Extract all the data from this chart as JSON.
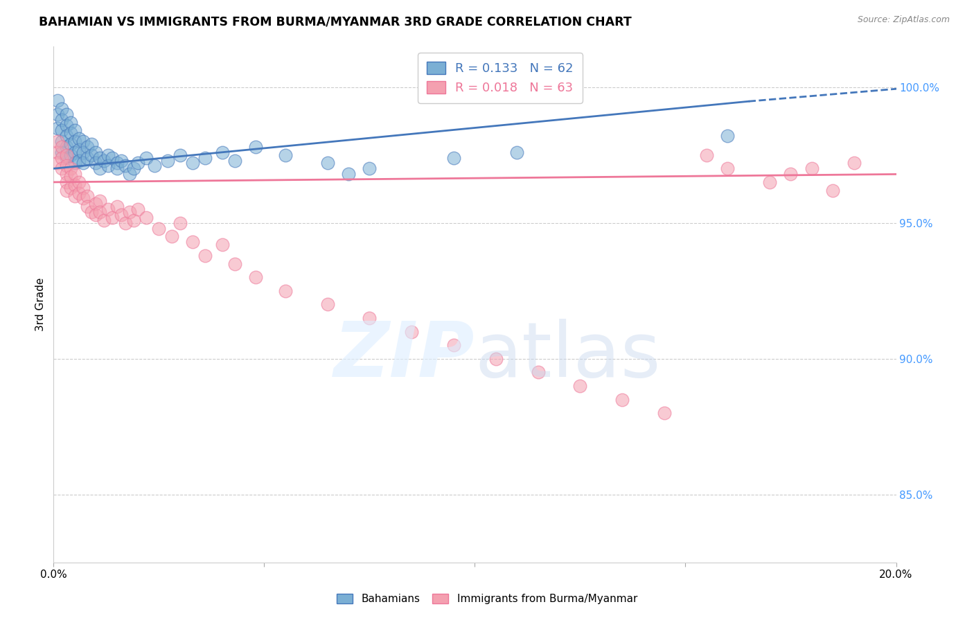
{
  "title": "BAHAMIAN VS IMMIGRANTS FROM BURMA/MYANMAR 3RD GRADE CORRELATION CHART",
  "source": "Source: ZipAtlas.com",
  "ylabel": "3rd Grade",
  "right_yticks": [
    85.0,
    90.0,
    95.0,
    100.0
  ],
  "right_ytick_labels": [
    "85.0%",
    "90.0%",
    "95.0%",
    "100.0%"
  ],
  "xlim": [
    0.0,
    0.2
  ],
  "ylim": [
    82.5,
    101.5
  ],
  "blue_color": "#7BAFD4",
  "pink_color": "#F4A0B0",
  "blue_line_color": "#4477BB",
  "pink_line_color": "#EE7799",
  "legend_R_blue": "0.133",
  "legend_N_blue": "62",
  "legend_R_pink": "0.018",
  "legend_N_pink": "63",
  "legend_label_blue": "Bahamians",
  "legend_label_pink": "Immigrants from Burma/Myanmar",
  "blue_scatter_x": [
    0.001,
    0.001,
    0.001,
    0.002,
    0.002,
    0.002,
    0.002,
    0.002,
    0.003,
    0.003,
    0.003,
    0.003,
    0.003,
    0.004,
    0.004,
    0.004,
    0.004,
    0.005,
    0.005,
    0.005,
    0.005,
    0.006,
    0.006,
    0.006,
    0.007,
    0.007,
    0.007,
    0.008,
    0.008,
    0.009,
    0.009,
    0.01,
    0.01,
    0.011,
    0.011,
    0.012,
    0.013,
    0.013,
    0.014,
    0.015,
    0.015,
    0.016,
    0.017,
    0.018,
    0.019,
    0.02,
    0.022,
    0.024,
    0.027,
    0.03,
    0.033,
    0.036,
    0.04,
    0.043,
    0.048,
    0.055,
    0.065,
    0.07,
    0.075,
    0.095,
    0.11,
    0.16
  ],
  "blue_scatter_y": [
    99.5,
    99.0,
    98.5,
    99.2,
    98.8,
    98.4,
    98.0,
    97.6,
    99.0,
    98.6,
    98.2,
    97.8,
    97.4,
    98.7,
    98.3,
    97.9,
    97.5,
    98.4,
    98.0,
    97.6,
    97.2,
    98.1,
    97.7,
    97.3,
    98.0,
    97.6,
    97.2,
    97.8,
    97.4,
    97.9,
    97.5,
    97.6,
    97.2,
    97.4,
    97.0,
    97.3,
    97.5,
    97.1,
    97.4,
    97.2,
    97.0,
    97.3,
    97.1,
    96.8,
    97.0,
    97.2,
    97.4,
    97.1,
    97.3,
    97.5,
    97.2,
    97.4,
    97.6,
    97.3,
    97.8,
    97.5,
    97.2,
    96.8,
    97.0,
    97.4,
    97.6,
    98.2
  ],
  "pink_scatter_x": [
    0.001,
    0.001,
    0.001,
    0.002,
    0.002,
    0.002,
    0.003,
    0.003,
    0.003,
    0.003,
    0.003,
    0.004,
    0.004,
    0.004,
    0.005,
    0.005,
    0.005,
    0.006,
    0.006,
    0.007,
    0.007,
    0.008,
    0.008,
    0.009,
    0.01,
    0.01,
    0.011,
    0.011,
    0.012,
    0.013,
    0.014,
    0.015,
    0.016,
    0.017,
    0.018,
    0.019,
    0.02,
    0.022,
    0.025,
    0.028,
    0.03,
    0.033,
    0.036,
    0.04,
    0.043,
    0.048,
    0.055,
    0.065,
    0.075,
    0.085,
    0.095,
    0.105,
    0.115,
    0.125,
    0.135,
    0.145,
    0.155,
    0.16,
    0.17,
    0.175,
    0.18,
    0.185,
    0.19
  ],
  "pink_scatter_y": [
    98.0,
    97.6,
    97.2,
    97.8,
    97.4,
    97.0,
    97.5,
    97.1,
    96.8,
    96.5,
    96.2,
    97.0,
    96.7,
    96.3,
    96.8,
    96.4,
    96.0,
    96.5,
    96.1,
    96.3,
    95.9,
    96.0,
    95.6,
    95.4,
    95.7,
    95.3,
    95.8,
    95.4,
    95.1,
    95.5,
    95.2,
    95.6,
    95.3,
    95.0,
    95.4,
    95.1,
    95.5,
    95.2,
    94.8,
    94.5,
    95.0,
    94.3,
    93.8,
    94.2,
    93.5,
    93.0,
    92.5,
    92.0,
    91.5,
    91.0,
    90.5,
    90.0,
    89.5,
    89.0,
    88.5,
    88.0,
    97.5,
    97.0,
    96.5,
    96.8,
    97.0,
    96.2,
    97.2
  ]
}
